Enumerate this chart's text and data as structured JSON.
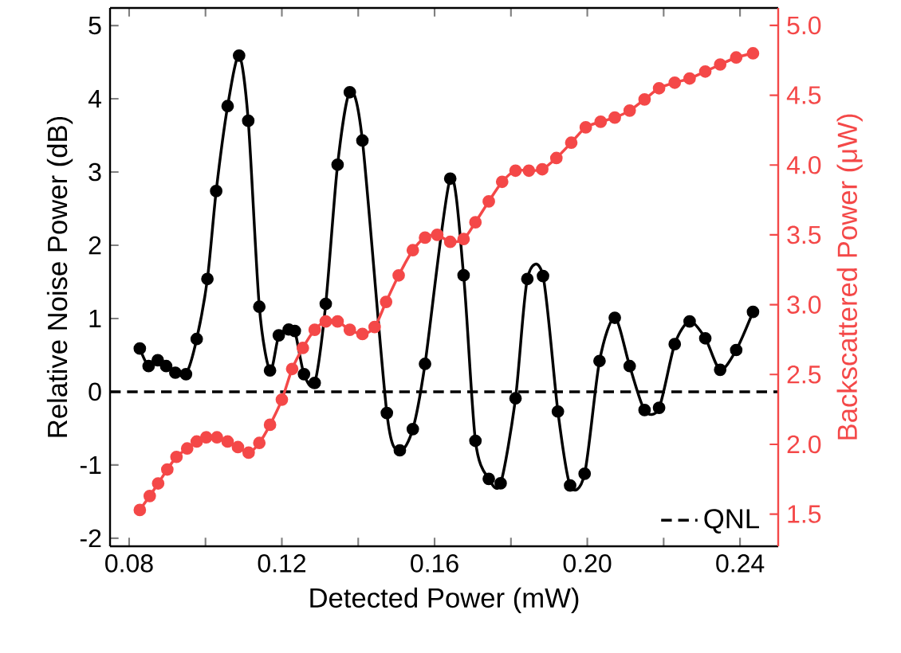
{
  "chart_data": {
    "type": "line",
    "xlabel": "Detected Power (mW)",
    "ylabel": "Relative Noise Power (dB)",
    "y2label": "Backscattered Power (μW)",
    "xlim": [
      0.075,
      0.25
    ],
    "xticks": [
      {
        "value": 0.08,
        "label": "0.08"
      },
      {
        "value": 0.1,
        "label": null
      },
      {
        "value": 0.12,
        "label": "0.12"
      },
      {
        "value": 0.14,
        "label": null
      },
      {
        "value": 0.16,
        "label": "0.16"
      },
      {
        "value": 0.18,
        "label": null
      },
      {
        "value": 0.2,
        "label": "0.20"
      },
      {
        "value": 0.22,
        "label": null
      },
      {
        "value": 0.24,
        "label": "0.24"
      }
    ],
    "ylim": [
      -2.11,
      5.24
    ],
    "yticks": [
      -2,
      -1,
      0,
      1,
      2,
      3,
      4,
      5
    ],
    "y2lim": [
      1.27,
      5.125
    ],
    "y2ticks": [
      {
        "value": 1.5,
        "label": "1.5"
      },
      {
        "value": 2.0,
        "label": "2.0"
      },
      {
        "value": 2.5,
        "label": "2.5"
      },
      {
        "value": 3.0,
        "label": "3.0"
      },
      {
        "value": 3.5,
        "label": "3.5"
      },
      {
        "value": 4.0,
        "label": "4.0"
      },
      {
        "value": 4.5,
        "label": "4.5"
      },
      {
        "value": 5.0,
        "label": "5.0"
      }
    ],
    "marker": "circle",
    "line_style": "solid",
    "legend": "bottom right",
    "grid": false,
    "ref_lines": [
      {
        "axis": "y",
        "value": 0,
        "label": "QNL",
        "color": "#000000",
        "line_style": "dashed"
      }
    ],
    "series": [
      {
        "color": "#000000",
        "axis": "y",
        "x": [
          0.0828,
          0.0851,
          0.0875,
          0.0897,
          0.0921,
          0.0949,
          0.0977,
          0.1005,
          0.1028,
          0.1058,
          0.1088,
          0.1112,
          0.1141,
          0.1169,
          0.1192,
          0.1218,
          0.1234,
          0.1258,
          0.1286,
          0.1315,
          0.1346,
          0.1378,
          0.1411,
          0.1475,
          0.1509,
          0.1543,
          0.1575,
          0.1607,
          0.1641,
          0.1676,
          0.1707,
          0.1742,
          0.1773,
          0.1812,
          0.1843,
          0.1884,
          0.1923,
          0.1955,
          0.1993,
          0.2032,
          0.2072,
          0.2111,
          0.215,
          0.2188,
          0.2229,
          0.2268,
          0.2309,
          0.2348,
          0.239,
          0.2434
        ],
        "values": [
          0.59,
          0.35,
          0.43,
          0.35,
          0.26,
          0.24,
          0.72,
          1.54,
          2.74,
          3.9,
          4.59,
          3.7,
          1.16,
          0.29,
          0.77,
          0.85,
          0.83,
          0.24,
          0.12,
          1.2,
          3.1,
          4.09,
          3.43,
          -0.29,
          -0.8,
          -0.51,
          0.38,
          null,
          2.91,
          1.59,
          -0.67,
          -1.19,
          -1.25,
          -0.09,
          1.54,
          1.58,
          -0.27,
          -1.28,
          -1.12,
          0.42,
          1.01,
          0.35,
          -0.25,
          -0.22,
          0.65,
          0.96,
          0.73,
          0.3,
          0.57,
          1.09
        ]
      },
      {
        "color": "#f44848",
        "axis": "y2",
        "x": [
          0.0828,
          0.0854,
          0.0876,
          0.09,
          0.0924,
          0.0952,
          0.0977,
          0.1002,
          0.103,
          0.1058,
          0.1085,
          0.1113,
          0.1141,
          0.1169,
          0.12,
          0.1227,
          0.1255,
          0.1286,
          0.1315,
          0.1346,
          0.1378,
          0.1411,
          0.1443,
          0.1473,
          0.1506,
          0.1543,
          0.1575,
          0.1607,
          0.1641,
          0.1676,
          0.1707,
          0.1742,
          0.1777,
          0.1812,
          0.1847,
          0.1882,
          0.1919,
          0.1958,
          0.1996,
          0.2035,
          0.2072,
          0.2111,
          0.215,
          0.2188,
          0.2229,
          0.2268,
          0.2309,
          0.2348,
          0.239,
          0.2434
        ],
        "values": [
          1.53,
          1.63,
          1.72,
          1.82,
          1.91,
          1.97,
          2.02,
          2.05,
          2.05,
          2.02,
          1.98,
          1.94,
          2.01,
          2.14,
          2.32,
          2.54,
          2.69,
          2.82,
          2.88,
          2.88,
          2.82,
          2.79,
          2.84,
          3.02,
          3.21,
          3.39,
          3.48,
          3.5,
          3.45,
          3.47,
          3.59,
          3.74,
          3.88,
          3.96,
          3.96,
          3.97,
          4.05,
          4.16,
          4.27,
          4.31,
          4.34,
          4.39,
          4.47,
          4.55,
          4.59,
          4.62,
          4.67,
          4.72,
          4.77,
          4.8
        ]
      }
    ]
  }
}
